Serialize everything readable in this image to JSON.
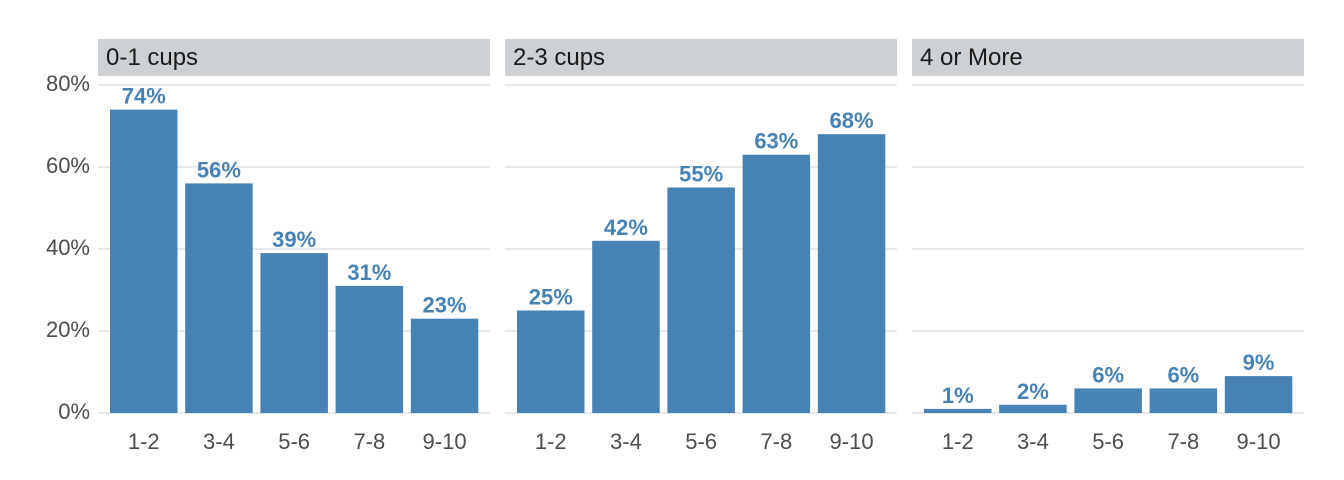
{
  "chart_data": {
    "type": "bar",
    "categories": [
      "1-2",
      "3-4",
      "5-6",
      "7-8",
      "9-10"
    ],
    "ylim": [
      0,
      80
    ],
    "y_ticks": [
      "0%",
      "20%",
      "40%",
      "60%",
      "80%"
    ],
    "y_tick_values": [
      0,
      20,
      40,
      60,
      80
    ],
    "grid": true,
    "bar_color": "#4682B4",
    "strip_color": "#CDD1D3",
    "panels": [
      {
        "title": "0-1 cups",
        "values": [
          74,
          56,
          39,
          31,
          23
        ],
        "labels": [
          "74%",
          "56%",
          "39%",
          "31%",
          "23%"
        ]
      },
      {
        "title": "2-3 cups",
        "values": [
          25,
          42,
          55,
          63,
          68
        ],
        "labels": [
          "25%",
          "42%",
          "55%",
          "63%",
          "68%"
        ]
      },
      {
        "title": "4 or More",
        "values": [
          1,
          2,
          6,
          6,
          9
        ],
        "labels": [
          "1%",
          "2%",
          "6%",
          "6%",
          "9%"
        ]
      }
    ]
  }
}
